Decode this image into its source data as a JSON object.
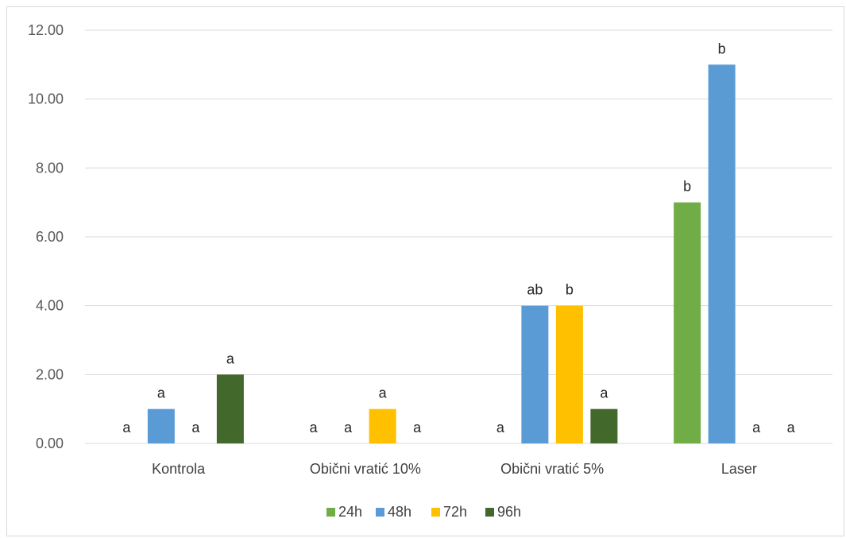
{
  "chart_data": {
    "type": "bar",
    "categories": [
      "Kontrola",
      "Obični vratić 10%",
      "Obični vratić 5%",
      "Laser"
    ],
    "series": [
      {
        "name": "24h",
        "color": "#70ad47",
        "values": [
          0,
          0,
          0,
          7
        ],
        "labels": [
          "a",
          "a",
          "a",
          "b"
        ]
      },
      {
        "name": "48h",
        "color": "#5b9bd5",
        "values": [
          1,
          0,
          4,
          11
        ],
        "labels": [
          "a",
          "a",
          "ab",
          "b"
        ]
      },
      {
        "name": "72h",
        "color": "#ffc000",
        "values": [
          0,
          1,
          4,
          0
        ],
        "labels": [
          "a",
          "a",
          "b",
          "a"
        ]
      },
      {
        "name": "96h",
        "color": "#43682b",
        "values": [
          2,
          0,
          1,
          0
        ],
        "labels": [
          "a",
          "a",
          "a",
          "a"
        ]
      }
    ],
    "ylim": [
      0,
      12
    ],
    "yticks": [
      "0.00",
      "2.00",
      "4.00",
      "6.00",
      "8.00",
      "10.00",
      "12.00"
    ],
    "title": "",
    "xlabel": "",
    "ylabel": "",
    "grid": true,
    "legend": "bottom"
  }
}
